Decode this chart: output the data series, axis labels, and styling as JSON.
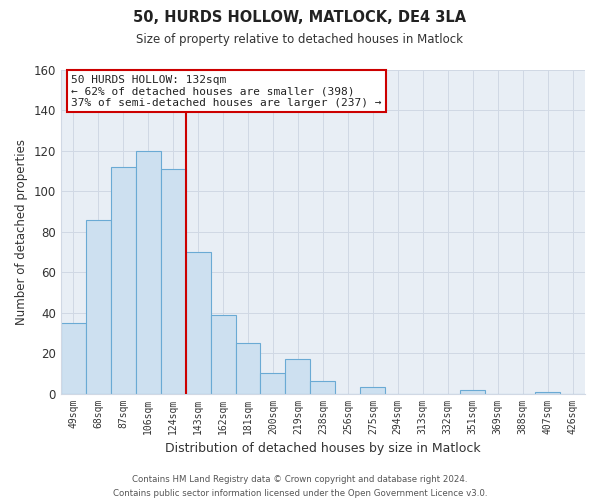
{
  "title": "50, HURDS HOLLOW, MATLOCK, DE4 3LA",
  "subtitle": "Size of property relative to detached houses in Matlock",
  "xlabel": "Distribution of detached houses by size in Matlock",
  "ylabel": "Number of detached properties",
  "bar_labels": [
    "49sqm",
    "68sqm",
    "87sqm",
    "106sqm",
    "124sqm",
    "143sqm",
    "162sqm",
    "181sqm",
    "200sqm",
    "219sqm",
    "238sqm",
    "256sqm",
    "275sqm",
    "294sqm",
    "313sqm",
    "332sqm",
    "351sqm",
    "369sqm",
    "388sqm",
    "407sqm",
    "426sqm"
  ],
  "bar_values": [
    35,
    86,
    112,
    120,
    111,
    70,
    39,
    25,
    10,
    17,
    6,
    0,
    3,
    0,
    0,
    0,
    2,
    0,
    0,
    1,
    0
  ],
  "bar_color": "#cde0f0",
  "bar_edge_color": "#6aaad4",
  "highlight_color": "#cc0000",
  "ylim": [
    0,
    160
  ],
  "yticks": [
    0,
    20,
    40,
    60,
    80,
    100,
    120,
    140,
    160
  ],
  "annotation_title": "50 HURDS HOLLOW: 132sqm",
  "annotation_line1": "← 62% of detached houses are smaller (398)",
  "annotation_line2": "37% of semi-detached houses are larger (237) →",
  "annotation_box_color": "#ffffff",
  "annotation_box_edge": "#cc0000",
  "grid_color": "#d0d8e4",
  "footer_line1": "Contains HM Land Registry data © Crown copyright and database right 2024.",
  "footer_line2": "Contains public sector information licensed under the Open Government Licence v3.0.",
  "bg_color": "#ffffff",
  "plot_bg_color": "#e8eef5"
}
